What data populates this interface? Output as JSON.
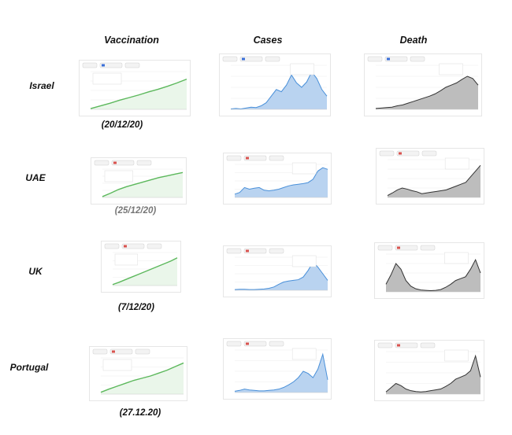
{
  "columns": [
    "Vaccination",
    "Cases",
    "Death"
  ],
  "rows": [
    {
      "country": "Israel",
      "date": "(20/12/20)"
    },
    {
      "country": "UAE",
      "date": "(25/12/20)"
    },
    {
      "country": "UK",
      "date": "(7/12/20)"
    },
    {
      "country": "Portugal",
      "date": "(27.12.20)"
    }
  ],
  "colors": {
    "vaccination": "#5cb85c",
    "cases": "#4a90d9",
    "cases_fill": "#b9d3f0",
    "death_line": "#333333",
    "death_fill": "#bdbdbd"
  },
  "chart_data": [
    {
      "type": "line",
      "panel": "Israel-Vaccination",
      "x": [
        0,
        1,
        2,
        3,
        4,
        5,
        6,
        7,
        8,
        9,
        10
      ],
      "y": [
        2,
        9,
        16,
        24,
        31,
        38,
        46,
        53,
        61,
        70,
        80
      ],
      "note": "illegible tick labels"
    },
    {
      "type": "area",
      "panel": "Israel-Cases",
      "y": [
        1,
        2,
        1,
        3,
        5,
        4,
        8,
        15,
        30,
        45,
        40,
        55,
        78,
        60,
        50,
        62,
        85,
        70,
        45,
        30
      ]
    },
    {
      "type": "area",
      "panel": "Israel-Death",
      "y": [
        2,
        3,
        4,
        5,
        8,
        10,
        14,
        18,
        22,
        26,
        30,
        35,
        42,
        50,
        55,
        60,
        68,
        75,
        70,
        55
      ]
    },
    {
      "type": "line",
      "panel": "UAE-Vaccination",
      "x": [
        0,
        1,
        2,
        3,
        4,
        5,
        6,
        7,
        8,
        9,
        10
      ],
      "y": [
        3,
        15,
        28,
        38,
        46,
        54,
        62,
        70,
        76,
        82,
        88
      ]
    },
    {
      "type": "area",
      "panel": "UAE-Cases",
      "y": [
        10,
        15,
        30,
        25,
        28,
        30,
        22,
        20,
        22,
        25,
        30,
        35,
        38,
        40,
        42,
        45,
        55,
        80,
        90,
        85
      ]
    },
    {
      "type": "area",
      "panel": "UAE-Death",
      "y": [
        5,
        12,
        20,
        25,
        22,
        18,
        15,
        10,
        12,
        14,
        16,
        18,
        20,
        25,
        30,
        35,
        40,
        55,
        70,
        85
      ]
    },
    {
      "type": "line",
      "panel": "UK-Vaccination",
      "x": [
        0,
        1,
        2,
        3,
        4,
        5,
        6,
        7,
        8,
        9,
        10
      ],
      "y": [
        3,
        10,
        18,
        26,
        34,
        42,
        50,
        58,
        66,
        74,
        84
      ]
    },
    {
      "type": "area",
      "panel": "UK-Cases",
      "y": [
        2,
        3,
        3,
        2,
        2,
        3,
        4,
        6,
        10,
        18,
        25,
        28,
        30,
        32,
        40,
        60,
        85,
        70,
        50,
        30
      ]
    },
    {
      "type": "area",
      "panel": "UK-Death",
      "y": [
        20,
        45,
        75,
        60,
        30,
        15,
        8,
        5,
        4,
        3,
        4,
        6,
        12,
        20,
        30,
        35,
        40,
        60,
        85,
        50
      ]
    },
    {
      "type": "line",
      "panel": "Portugal-Vaccination",
      "x": [
        0,
        1,
        2,
        3,
        4,
        5,
        6,
        7,
        8,
        9,
        10
      ],
      "y": [
        5,
        14,
        22,
        30,
        38,
        44,
        50,
        58,
        66,
        76,
        86
      ]
    },
    {
      "type": "area",
      "panel": "Portugal-Cases",
      "y": [
        3,
        5,
        8,
        6,
        5,
        4,
        4,
        5,
        6,
        8,
        12,
        18,
        25,
        35,
        50,
        45,
        35,
        55,
        90,
        30
      ]
    },
    {
      "type": "area",
      "panel": "Portugal-Death",
      "y": [
        5,
        15,
        25,
        20,
        12,
        8,
        6,
        5,
        6,
        8,
        10,
        12,
        18,
        25,
        35,
        40,
        45,
        55,
        90,
        40
      ]
    }
  ]
}
